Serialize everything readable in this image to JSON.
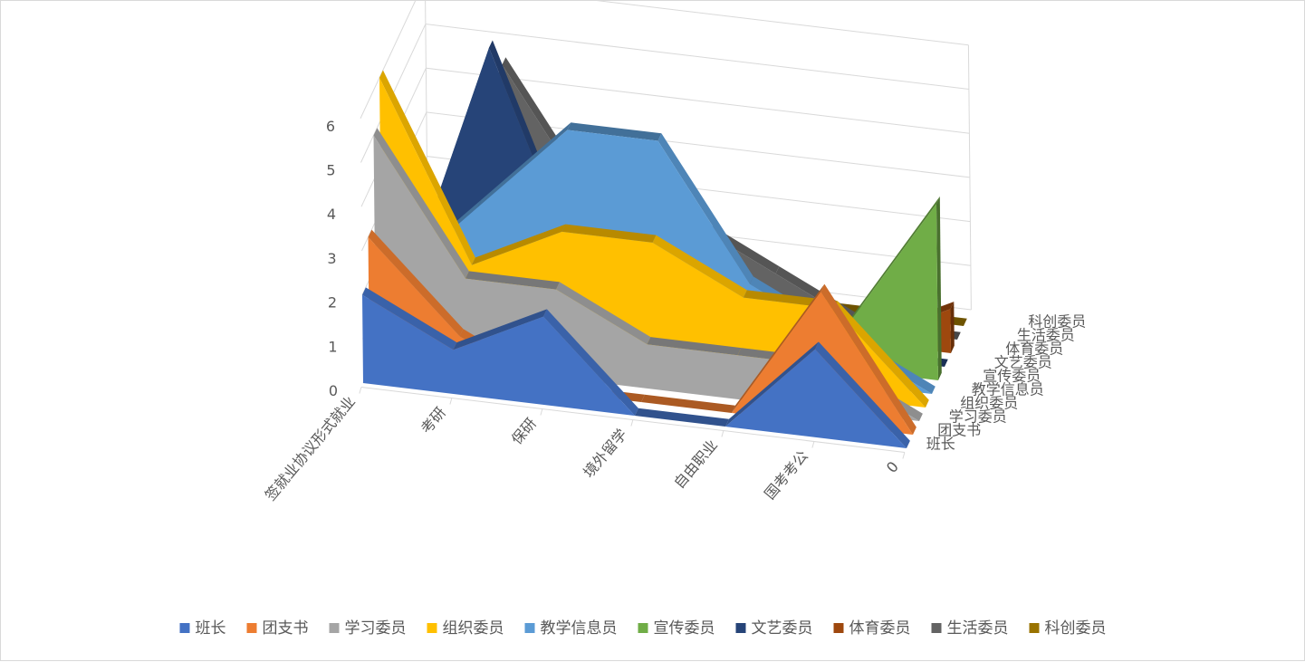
{
  "chart_data": {
    "type": "area",
    "subtype": "3d-area",
    "categories": [
      "签就业协议形式就业",
      "考研",
      "保研",
      "境外留学",
      "自由职业",
      "国考考公",
      "0"
    ],
    "series": [
      {
        "name": "班长",
        "color": "#4472C4",
        "values": [
          2,
          1,
          2,
          0,
          0,
          2,
          0
        ]
      },
      {
        "name": "团支书",
        "color": "#ED7D31",
        "values": [
          3,
          1,
          0,
          0,
          0,
          3,
          0
        ]
      },
      {
        "name": "学习委员",
        "color": "#A5A5A5",
        "values": [
          5,
          2,
          2,
          1,
          1,
          1,
          0
        ]
      },
      {
        "name": "组织委员",
        "color": "#FFC000",
        "values": [
          6,
          2,
          3,
          3,
          2,
          2,
          0
        ]
      },
      {
        "name": "教学信息员",
        "color": "#5B9BD5",
        "values": [
          1,
          3,
          5,
          5,
          2,
          1,
          0
        ]
      },
      {
        "name": "宣传委员",
        "color": "#70AD47",
        "values": [
          0,
          0,
          0,
          1,
          1,
          1,
          4
        ]
      },
      {
        "name": "文艺委员",
        "color": "#264478",
        "values": [
          0,
          6,
          1,
          0,
          0,
          0,
          0
        ]
      },
      {
        "name": "体育委员",
        "color": "#9E480E",
        "values": [
          0,
          3,
          3,
          1,
          0,
          0,
          1
        ]
      },
      {
        "name": "生活委员",
        "color": "#636363",
        "values": [
          0,
          5,
          2,
          2,
          1,
          0,
          0
        ]
      },
      {
        "name": "科创委员",
        "color": "#997300",
        "values": [
          0,
          0,
          0,
          0,
          0,
          0,
          0
        ]
      }
    ],
    "y_ticks": [
      "0",
      "1",
      "2",
      "3",
      "4",
      "5",
      "6"
    ],
    "ylim": [
      0,
      6
    ],
    "grid": true,
    "legend_position": "bottom"
  }
}
